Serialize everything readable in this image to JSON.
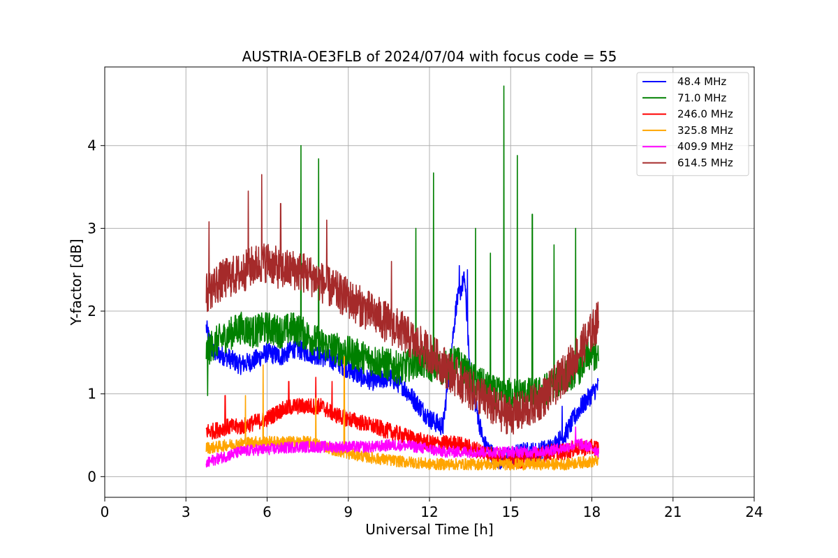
{
  "chart_data": {
    "type": "line",
    "title": "AUSTRIA-OE3FLB of 2024/07/04 with focus code = 55",
    "xlabel": "Universal Time [h]",
    "ylabel": "Y-factor [dB]",
    "xlim": [
      0,
      24
    ],
    "ylim": [
      -0.25,
      4.95
    ],
    "xticks": [
      0,
      3,
      6,
      9,
      12,
      15,
      18,
      21,
      24
    ],
    "yticks": [
      0,
      1,
      2,
      3,
      4
    ],
    "grid": true,
    "legend_position": "top-right",
    "series": [
      {
        "name": " 48.4 MHz",
        "color": "#0000ff",
        "points": [
          [
            3.75,
            1.8
          ],
          [
            4.0,
            1.5
          ],
          [
            4.5,
            1.45
          ],
          [
            5.0,
            1.35
          ],
          [
            5.5,
            1.4
          ],
          [
            6.0,
            1.5
          ],
          [
            6.5,
            1.45
          ],
          [
            7.0,
            1.55
          ],
          [
            7.5,
            1.5
          ],
          [
            8.0,
            1.45
          ],
          [
            8.5,
            1.4
          ],
          [
            9.0,
            1.3
          ],
          [
            9.5,
            1.2
          ],
          [
            10.0,
            1.15
          ],
          [
            10.5,
            1.2
          ],
          [
            11.0,
            1.1
          ],
          [
            11.5,
            0.9
          ],
          [
            12.0,
            0.7
          ],
          [
            12.5,
            0.6
          ],
          [
            13.0,
            2.1
          ],
          [
            13.3,
            2.4
          ],
          [
            13.5,
            1.2
          ],
          [
            14.0,
            0.4
          ],
          [
            14.5,
            0.2
          ],
          [
            15.0,
            0.25
          ],
          [
            15.5,
            0.3
          ],
          [
            16.0,
            0.3
          ],
          [
            16.5,
            0.35
          ],
          [
            17.0,
            0.5
          ],
          [
            17.5,
            0.8
          ],
          [
            18.0,
            1.0
          ],
          [
            18.25,
            1.1
          ]
        ],
        "noise": 0.12,
        "spikes": [
          [
            13.1,
            2.55
          ],
          [
            13.4,
            2.5
          ],
          [
            16.9,
            0.85
          ]
        ]
      },
      {
        "name": " 71.0 MHz",
        "color": "#008000",
        "points": [
          [
            3.75,
            1.5
          ],
          [
            4.0,
            1.6
          ],
          [
            4.5,
            1.7
          ],
          [
            5.0,
            1.8
          ],
          [
            5.5,
            1.75
          ],
          [
            6.0,
            1.8
          ],
          [
            6.5,
            1.75
          ],
          [
            7.0,
            1.8
          ],
          [
            7.5,
            1.7
          ],
          [
            8.0,
            1.6
          ],
          [
            8.5,
            1.55
          ],
          [
            9.0,
            1.5
          ],
          [
            9.5,
            1.45
          ],
          [
            10.0,
            1.4
          ],
          [
            10.5,
            1.35
          ],
          [
            11.0,
            1.3
          ],
          [
            11.5,
            1.4
          ],
          [
            12.0,
            1.35
          ],
          [
            12.5,
            1.3
          ],
          [
            13.0,
            1.4
          ],
          [
            13.5,
            1.2
          ],
          [
            14.0,
            1.1
          ],
          [
            14.5,
            1.0
          ],
          [
            15.0,
            1.0
          ],
          [
            15.5,
            1.0
          ],
          [
            16.0,
            1.0
          ],
          [
            16.5,
            1.1
          ],
          [
            17.0,
            1.2
          ],
          [
            17.5,
            1.3
          ],
          [
            18.0,
            1.5
          ],
          [
            18.25,
            1.4
          ]
        ],
        "noise": 0.2,
        "spikes": [
          [
            3.8,
            0.98
          ],
          [
            7.25,
            4.0
          ],
          [
            7.9,
            3.84
          ],
          [
            11.5,
            3.0
          ],
          [
            12.15,
            3.67
          ],
          [
            13.7,
            3.0
          ],
          [
            14.25,
            2.7
          ],
          [
            14.75,
            4.72
          ],
          [
            15.25,
            3.88
          ],
          [
            15.8,
            3.17
          ],
          [
            16.6,
            2.8
          ],
          [
            17.4,
            3.0
          ]
        ]
      },
      {
        "name": "246.0 MHz",
        "color": "#ff0000",
        "points": [
          [
            3.75,
            0.55
          ],
          [
            4.0,
            0.55
          ],
          [
            4.5,
            0.6
          ],
          [
            5.0,
            0.6
          ],
          [
            5.5,
            0.65
          ],
          [
            6.0,
            0.7
          ],
          [
            6.5,
            0.8
          ],
          [
            7.0,
            0.85
          ],
          [
            7.5,
            0.85
          ],
          [
            8.0,
            0.85
          ],
          [
            8.5,
            0.75
          ],
          [
            9.0,
            0.7
          ],
          [
            9.5,
            0.65
          ],
          [
            10.0,
            0.6
          ],
          [
            10.5,
            0.55
          ],
          [
            11.0,
            0.5
          ],
          [
            11.5,
            0.45
          ],
          [
            12.0,
            0.4
          ],
          [
            12.5,
            0.4
          ],
          [
            13.0,
            0.4
          ],
          [
            13.5,
            0.35
          ],
          [
            14.0,
            0.3
          ],
          [
            14.5,
            0.25
          ],
          [
            15.0,
            0.2
          ],
          [
            15.5,
            0.2
          ],
          [
            16.0,
            0.25
          ],
          [
            16.5,
            0.3
          ],
          [
            17.0,
            0.3
          ],
          [
            17.5,
            0.35
          ],
          [
            18.0,
            0.35
          ],
          [
            18.25,
            0.35
          ]
        ],
        "noise": 0.1,
        "spikes": [
          [
            4.45,
            0.98
          ],
          [
            6.8,
            1.15
          ],
          [
            7.8,
            1.2
          ],
          [
            8.4,
            1.15
          ]
        ]
      },
      {
        "name": "325.8 MHz",
        "color": "#ffa500",
        "points": [
          [
            3.75,
            0.35
          ],
          [
            4.0,
            0.35
          ],
          [
            4.5,
            0.38
          ],
          [
            5.0,
            0.4
          ],
          [
            5.5,
            0.42
          ],
          [
            6.0,
            0.42
          ],
          [
            6.5,
            0.42
          ],
          [
            7.0,
            0.42
          ],
          [
            7.5,
            0.42
          ],
          [
            8.0,
            0.38
          ],
          [
            8.5,
            0.32
          ],
          [
            9.0,
            0.28
          ],
          [
            9.5,
            0.25
          ],
          [
            10.0,
            0.22
          ],
          [
            10.5,
            0.2
          ],
          [
            11.0,
            0.18
          ],
          [
            11.5,
            0.17
          ],
          [
            12.0,
            0.15
          ],
          [
            12.5,
            0.15
          ],
          [
            13.0,
            0.15
          ],
          [
            13.5,
            0.15
          ],
          [
            14.0,
            0.15
          ],
          [
            14.5,
            0.15
          ],
          [
            15.0,
            0.15
          ],
          [
            15.5,
            0.15
          ],
          [
            16.0,
            0.15
          ],
          [
            16.5,
            0.15
          ],
          [
            17.0,
            0.15
          ],
          [
            17.5,
            0.17
          ],
          [
            18.0,
            0.18
          ],
          [
            18.25,
            0.2
          ]
        ],
        "noise": 0.07,
        "spikes": [
          [
            5.2,
            0.98
          ],
          [
            5.85,
            1.35
          ],
          [
            7.8,
            0.95
          ],
          [
            8.85,
            1.45
          ]
        ]
      },
      {
        "name": "409.9 MHz",
        "color": "#ff00ff",
        "points": [
          [
            3.75,
            0.15
          ],
          [
            4.0,
            0.2
          ],
          [
            4.5,
            0.25
          ],
          [
            5.0,
            0.3
          ],
          [
            5.5,
            0.32
          ],
          [
            6.0,
            0.33
          ],
          [
            6.5,
            0.34
          ],
          [
            7.0,
            0.36
          ],
          [
            7.5,
            0.36
          ],
          [
            8.0,
            0.36
          ],
          [
            8.5,
            0.36
          ],
          [
            9.0,
            0.36
          ],
          [
            9.5,
            0.36
          ],
          [
            10.0,
            0.36
          ],
          [
            10.5,
            0.38
          ],
          [
            11.0,
            0.38
          ],
          [
            11.5,
            0.36
          ],
          [
            12.0,
            0.33
          ],
          [
            12.5,
            0.3
          ],
          [
            13.0,
            0.3
          ],
          [
            13.5,
            0.3
          ],
          [
            14.0,
            0.3
          ],
          [
            14.5,
            0.3
          ],
          [
            15.0,
            0.3
          ],
          [
            15.5,
            0.3
          ],
          [
            16.0,
            0.3
          ],
          [
            16.5,
            0.32
          ],
          [
            17.0,
            0.35
          ],
          [
            17.5,
            0.4
          ],
          [
            18.0,
            0.35
          ],
          [
            18.25,
            0.3
          ]
        ],
        "noise": 0.07,
        "spikes": [
          [
            17.4,
            0.6
          ]
        ]
      },
      {
        "name": "614.5 MHz",
        "color": "#a52a2a",
        "points": [
          [
            3.75,
            2.2
          ],
          [
            4.0,
            2.3
          ],
          [
            4.5,
            2.4
          ],
          [
            5.0,
            2.45
          ],
          [
            5.5,
            2.55
          ],
          [
            6.0,
            2.6
          ],
          [
            6.5,
            2.5
          ],
          [
            7.0,
            2.5
          ],
          [
            7.5,
            2.45
          ],
          [
            8.0,
            2.35
          ],
          [
            8.5,
            2.25
          ],
          [
            9.0,
            2.15
          ],
          [
            9.5,
            2.05
          ],
          [
            10.0,
            1.95
          ],
          [
            10.5,
            1.85
          ],
          [
            11.0,
            1.75
          ],
          [
            11.5,
            1.6
          ],
          [
            12.0,
            1.5
          ],
          [
            12.5,
            1.35
          ],
          [
            13.0,
            1.2
          ],
          [
            13.5,
            1.05
          ],
          [
            14.0,
            0.95
          ],
          [
            14.5,
            0.8
          ],
          [
            15.0,
            0.75
          ],
          [
            15.5,
            0.8
          ],
          [
            16.0,
            0.9
          ],
          [
            16.5,
            1.05
          ],
          [
            17.0,
            1.25
          ],
          [
            17.5,
            1.5
          ],
          [
            18.0,
            1.75
          ],
          [
            18.25,
            1.9
          ]
        ],
        "noise": 0.25,
        "spikes": [
          [
            3.85,
            3.08
          ],
          [
            5.3,
            3.45
          ],
          [
            5.8,
            3.65
          ],
          [
            6.5,
            3.3
          ],
          [
            8.2,
            3.1
          ],
          [
            10.6,
            2.6
          ]
        ]
      }
    ]
  }
}
